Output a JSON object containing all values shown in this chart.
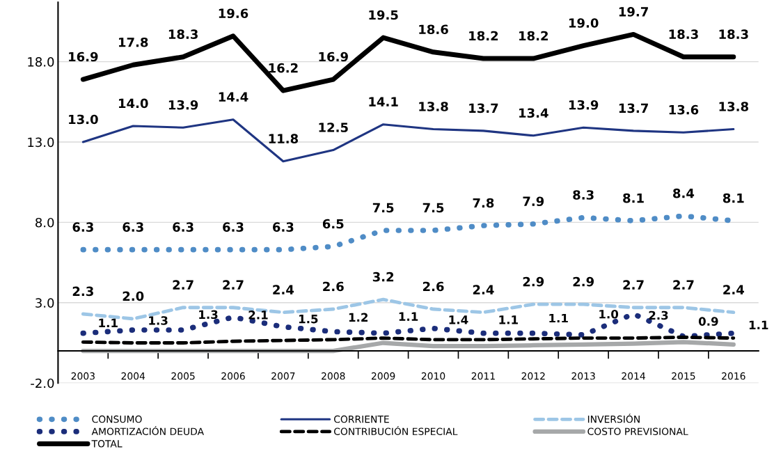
{
  "chart_data": {
    "type": "line",
    "categories": [
      "2003",
      "2004",
      "2005",
      "2006",
      "2007",
      "2008",
      "2009",
      "2010",
      "2011",
      "2012",
      "2013",
      "2014",
      "2015",
      "2016"
    ],
    "ylim": [
      -2,
      21.7
    ],
    "yticks": [
      {
        "value": -2,
        "label": "-2.0"
      },
      {
        "value": 3,
        "label": "3.0"
      },
      {
        "value": 8,
        "label": "8.0"
      },
      {
        "value": 13,
        "label": "13.0"
      },
      {
        "value": 18,
        "label": "18.0"
      }
    ],
    "grid": "y",
    "legend": "bottom",
    "series": [
      {
        "name": "CONSUMO",
        "color": "#4f8cc6",
        "line_style": "dotted",
        "values": [
          6.3,
          6.3,
          6.3,
          6.3,
          6.3,
          6.5,
          7.5,
          7.5,
          7.8,
          7.9,
          8.3,
          8.1,
          8.4,
          8.1
        ],
        "value_labels": [
          "6.3",
          "6.3",
          "6.3",
          "6.3",
          "6.3",
          "6.5",
          "7.5",
          "7.5",
          "7.8",
          "7.9",
          "8.3",
          "8.1",
          "8.4",
          "8.1"
        ]
      },
      {
        "name": "CORRIENTE",
        "color": "#1f3582",
        "line_style": "solid",
        "values": [
          13.0,
          14.0,
          13.9,
          14.4,
          11.8,
          12.5,
          14.1,
          13.8,
          13.7,
          13.4,
          13.9,
          13.7,
          13.6,
          13.8
        ],
        "value_labels": [
          "13.0",
          "14.0",
          "13.9",
          "14.4",
          "11.8",
          "12.5",
          "14.1",
          "13.8",
          "13.7",
          "13.4",
          "13.9",
          "13.7",
          "13.6",
          "13.8"
        ]
      },
      {
        "name": "INVERSIÓN",
        "color": "#9dc6e6",
        "line_style": "dashed",
        "values": [
          2.3,
          2.0,
          2.7,
          2.7,
          2.4,
          2.6,
          3.2,
          2.6,
          2.4,
          2.9,
          2.9,
          2.7,
          2.7,
          2.4
        ],
        "value_labels": [
          "2.3",
          "2.0",
          "2.7",
          "2.7",
          "2.4",
          "2.6",
          "3.2",
          "2.6",
          "2.4",
          "2.9",
          "2.9",
          "2.7",
          "2.7",
          "2.4"
        ]
      },
      {
        "name": "AMORTIZACIÓN DEUDA",
        "color": "#1b2d7a",
        "line_style": "dotted",
        "values": [
          1.1,
          1.3,
          1.3,
          2.1,
          1.5,
          1.2,
          1.1,
          1.4,
          1.1,
          1.1,
          1.0,
          2.3,
          0.9,
          1.1
        ],
        "value_labels": [
          "1.1",
          "1.3",
          "1.3",
          "2.1",
          "1.5",
          "1.2",
          "1.1",
          "1.4",
          "1.1",
          "1.1",
          "1.0",
          "2.3",
          "0.9",
          "1.1"
        ]
      },
      {
        "name": "CONTRIBUCIÓN ESPECIAL",
        "color": "#000000",
        "line_style": "dashed",
        "values": [
          0.55,
          0.5,
          0.5,
          0.6,
          0.65,
          0.7,
          0.8,
          0.7,
          0.7,
          0.75,
          0.8,
          0.8,
          0.85,
          0.8
        ]
      },
      {
        "name": "COSTO PREVISIONAL",
        "color": "#a6a8a9",
        "line_style": "solid",
        "values": [
          0,
          0,
          0,
          0,
          0,
          0,
          0.5,
          0.3,
          0.3,
          0.35,
          0.4,
          0.45,
          0.55,
          0.4
        ]
      },
      {
        "name": "TOTAL",
        "color": "#000000",
        "line_style": "solid",
        "values": [
          16.9,
          17.8,
          18.3,
          19.6,
          16.2,
          16.9,
          19.5,
          18.6,
          18.2,
          18.2,
          19.0,
          19.7,
          18.3,
          18.3
        ],
        "value_labels": [
          "16.9",
          "17.8",
          "18.3",
          "19.6",
          "16.2",
          "16.9",
          "19.5",
          "18.6",
          "18.2",
          "18.2",
          "19.0",
          "19.7",
          "18.3",
          "18.3"
        ]
      }
    ]
  }
}
